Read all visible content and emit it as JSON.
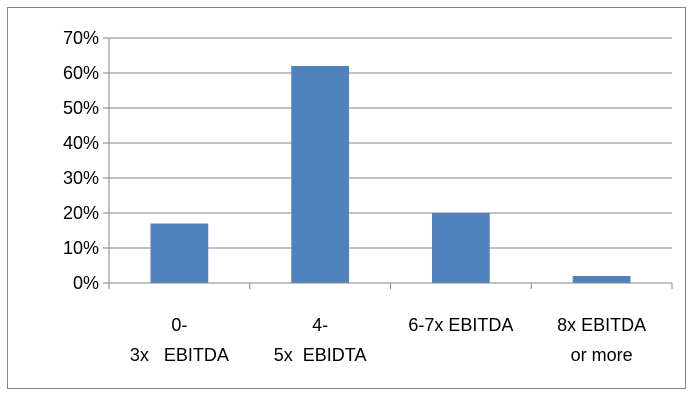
{
  "chart_data": {
    "type": "bar",
    "categories": [
      "0-\n3x   EBITDA",
      "4-\n5x  EBIDTA",
      "6-7x EBITDA",
      "8x EBITDA\nor more"
    ],
    "values": [
      17,
      62,
      20,
      2
    ],
    "yticks": [
      "0%",
      "10%",
      "20%",
      "30%",
      "40%",
      "50%",
      "60%",
      "70%"
    ],
    "ylim": [
      0,
      70
    ],
    "grid": true,
    "legend": "none",
    "bar_color": "#4F81BD",
    "grid_color": "#868686"
  }
}
